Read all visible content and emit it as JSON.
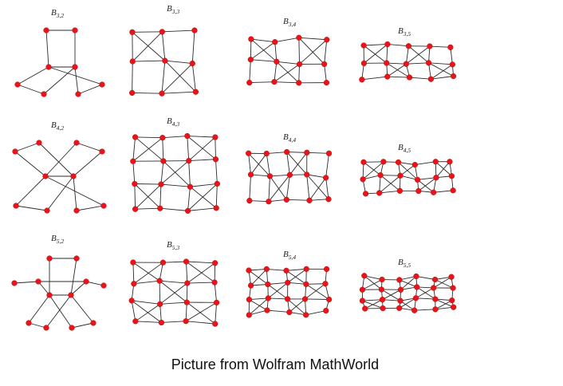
{
  "caption": "Picture from Wolfram MathWorld",
  "graphs": [
    {
      "id": "b-3-2",
      "base": "B",
      "sub": "3,2"
    },
    {
      "id": "b-3-3",
      "base": "B",
      "sub": "3,3"
    },
    {
      "id": "b-3-4",
      "base": "B",
      "sub": "3,4"
    },
    {
      "id": "b-3-5",
      "base": "B",
      "sub": "3,5"
    },
    {
      "id": "b-4-2",
      "base": "B",
      "sub": "4,2"
    },
    {
      "id": "b-4-3",
      "base": "B",
      "sub": "4,3"
    },
    {
      "id": "b-4-4",
      "base": "B",
      "sub": "4,4"
    },
    {
      "id": "b-4-5",
      "base": "B",
      "sub": "4,5"
    },
    {
      "id": "b-5-2",
      "base": "B",
      "sub": "5,2"
    },
    {
      "id": "b-5-3",
      "base": "B",
      "sub": "5,3"
    },
    {
      "id": "b-5-4",
      "base": "B",
      "sub": "5,4"
    },
    {
      "id": "b-5-5",
      "base": "B",
      "sub": "5,5"
    }
  ],
  "colors": {
    "node": "#e8141a",
    "edge": "#2b2b2b",
    "background": "#ffffff"
  }
}
